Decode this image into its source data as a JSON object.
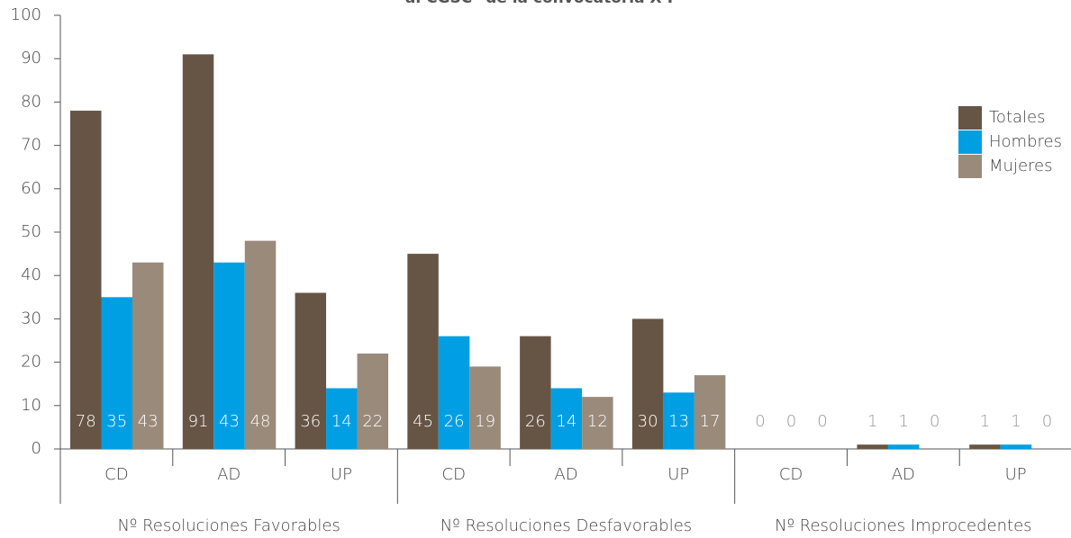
{
  "chart_data": {
    "type": "bar",
    "title": "al CGSC* de la convocatoria X-Y",
    "categories": [
      "CD",
      "AD",
      "UP",
      "CD",
      "AD",
      "UP",
      "CD",
      "AD",
      "UP"
    ],
    "groups": [
      "Nº Resoluciones Favorables",
      "Nº Resoluciones Desfavorables",
      "Nº Resoluciones Improcedentes"
    ],
    "series": [
      {
        "name": "Totales",
        "color": "#665545",
        "values": [
          78,
          91,
          36,
          45,
          26,
          30,
          0,
          1,
          1
        ]
      },
      {
        "name": "Hombres",
        "color": "#009fe3",
        "values": [
          35,
          43,
          14,
          26,
          14,
          13,
          0,
          1,
          1
        ]
      },
      {
        "name": "Mujeres",
        "color": "#9a8a7a",
        "values": [
          43,
          48,
          22,
          19,
          12,
          17,
          0,
          0,
          0
        ]
      }
    ],
    "ylim": [
      0,
      100
    ],
    "yticks": [
      0,
      10,
      20,
      30,
      40,
      50,
      60,
      70,
      80,
      90,
      100
    ],
    "legend": "right"
  }
}
